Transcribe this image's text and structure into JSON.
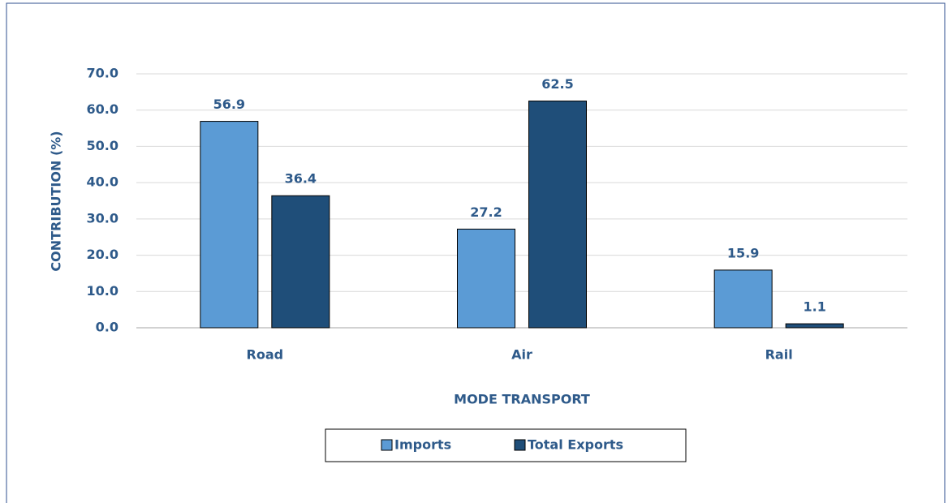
{
  "chart_data": {
    "type": "bar",
    "categories": [
      "Road",
      "Air",
      "Rail"
    ],
    "series": [
      {
        "name": "Imports",
        "color": "#5b9bd5",
        "values": [
          56.9,
          27.2,
          15.9
        ]
      },
      {
        "name": "Total Exports",
        "color": "#1f4e79",
        "values": [
          36.4,
          62.5,
          1.1
        ]
      }
    ],
    "ylim": [
      0,
      70
    ],
    "yticks": [
      {
        "value": 0,
        "label": "0.0"
      },
      {
        "value": 10,
        "label": "10.0"
      },
      {
        "value": 20,
        "label": "20.0"
      },
      {
        "value": 30,
        "label": "30.0"
      },
      {
        "value": 40,
        "label": "40.0"
      },
      {
        "value": 50,
        "label": "50.0"
      },
      {
        "value": 60,
        "label": "60.0"
      },
      {
        "value": 70,
        "label": "70.0"
      }
    ],
    "ylabel": "CONTRIBUTION (%)",
    "xlabel": "MODE TRANSPORT",
    "grid": true,
    "legend": "bottom"
  }
}
